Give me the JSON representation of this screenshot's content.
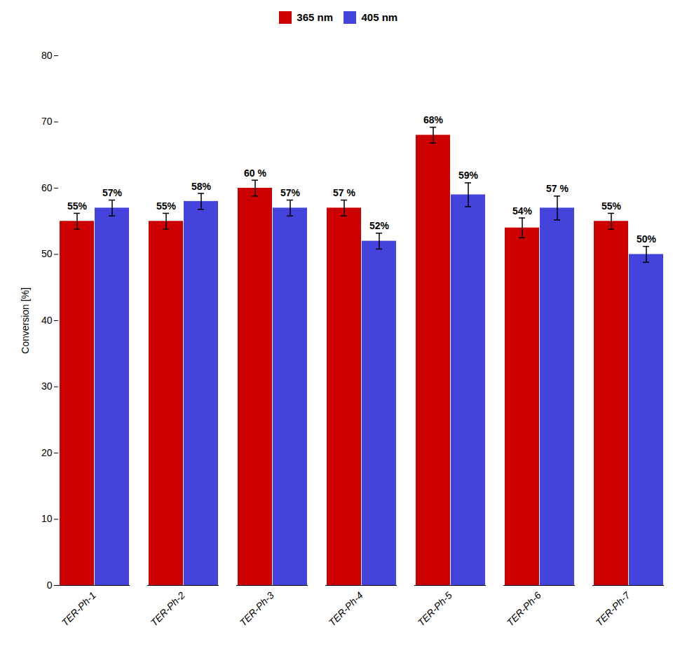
{
  "chart_data": {
    "type": "bar",
    "categories": [
      "TER-Ph-1",
      "TER-Ph-2",
      "TER-Ph-3",
      "TER-Ph-4",
      "TER-Ph-5",
      "TER-Ph-6",
      "TER-Ph-7"
    ],
    "series": [
      {
        "name": "365 nm",
        "color": "#CC0000",
        "values": [
          55,
          55,
          60,
          57,
          68,
          54,
          55
        ],
        "errors": [
          1.2,
          1.2,
          1.2,
          1.2,
          1.2,
          1.5,
          1.2
        ],
        "value_labels": [
          "55%",
          "55%",
          "60 %",
          "57 %",
          "68%",
          "54%",
          "55%"
        ]
      },
      {
        "name": "405 nm",
        "color": "#4444DD",
        "values": [
          57,
          58,
          57,
          52,
          59,
          57,
          50
        ],
        "errors": [
          1.2,
          1.2,
          1.2,
          1.2,
          1.8,
          1.8,
          1.2
        ],
        "value_labels": [
          "57%",
          "58%",
          "57%",
          "52%",
          "59%",
          "57 %",
          "50%"
        ]
      }
    ],
    "ylabel": "Conversion [%]",
    "ylim": [
      0,
      80
    ],
    "yticks": [
      0,
      10,
      20,
      30,
      40,
      50,
      60,
      70,
      80
    ],
    "data_labels": true,
    "legend": "upper center",
    "grid": false
  }
}
